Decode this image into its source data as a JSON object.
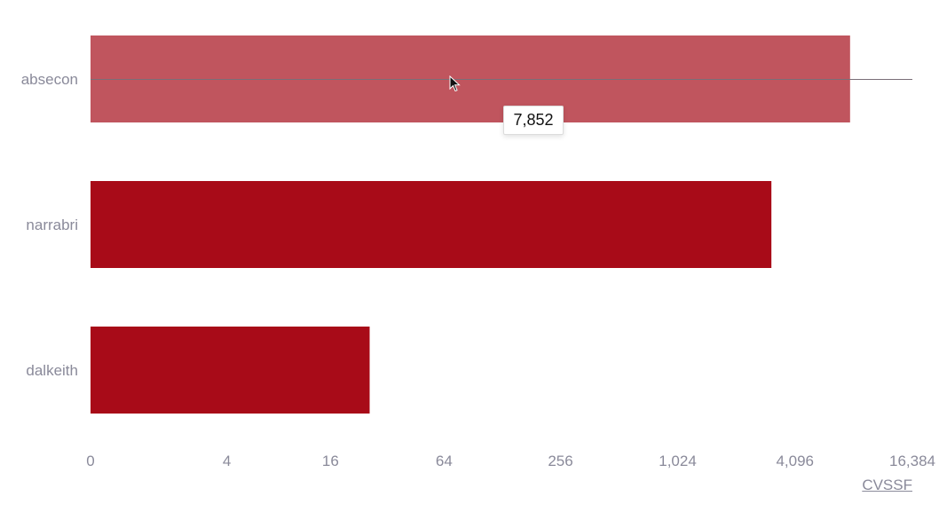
{
  "chart_data": {
    "type": "bar",
    "orientation": "horizontal",
    "scale": "log2",
    "categories": [
      "absecon",
      "narrabri",
      "dalkeith"
    ],
    "values": [
      7852,
      3100,
      26
    ],
    "x_ticks": [
      0,
      4,
      16,
      64,
      256,
      1024,
      4096,
      16384
    ],
    "x_tick_labels": [
      "0",
      "4",
      "16",
      "64",
      "256",
      "1,024",
      "4,096",
      "16,384"
    ],
    "xlabel": "CVSSF",
    "bar_color": "#a80b18",
    "highlight_color": "#c0555e",
    "highlighted_index": 0
  },
  "tooltip": {
    "value_label": "7,852"
  }
}
